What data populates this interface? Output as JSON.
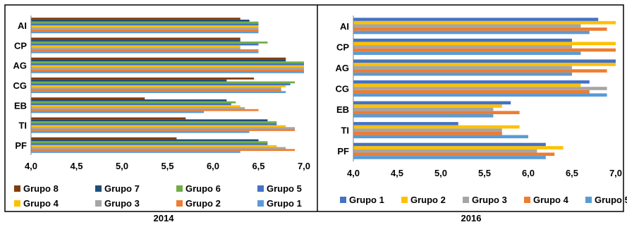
{
  "captions": [
    "2014",
    "2016"
  ],
  "chart_data": [
    {
      "type": "bar",
      "orientation": "horizontal",
      "title": "",
      "xlabel": "",
      "ylabel": "",
      "xlim": [
        4.0,
        7.0
      ],
      "xticks": [
        "4,0",
        "4,5",
        "5,0",
        "5,5",
        "6,0",
        "6,5",
        "7,0"
      ],
      "tick_values": [
        4.0,
        4.5,
        5.0,
        5.5,
        6.0,
        6.5,
        7.0
      ],
      "categories": [
        "AI",
        "CP",
        "AG",
        "CG",
        "EB",
        "TI",
        "PF"
      ],
      "grid": false,
      "legend_position": "bottom",
      "legend_columns": 4,
      "series": [
        {
          "name": "Grupo 8",
          "color": "#843C0C",
          "values": [
            6.3,
            6.3,
            6.8,
            6.45,
            5.25,
            5.7,
            5.6
          ]
        },
        {
          "name": "Grupo 7",
          "color": "#1F4E79",
          "values": [
            6.4,
            6.3,
            6.8,
            6.15,
            6.15,
            6.6,
            6.5
          ]
        },
        {
          "name": "Grupo 6",
          "color": "#70AD47",
          "values": [
            6.5,
            6.6,
            7.0,
            6.9,
            6.25,
            6.7,
            6.6
          ]
        },
        {
          "name": "Grupo 5",
          "color": "#4472C4",
          "values": [
            6.5,
            6.5,
            7.0,
            6.85,
            6.2,
            6.7,
            6.6
          ]
        },
        {
          "name": "Grupo 4",
          "color": "#FFC000",
          "values": [
            6.5,
            6.3,
            7.0,
            6.8,
            6.3,
            6.8,
            6.7
          ]
        },
        {
          "name": "Grupo 3",
          "color": "#A5A5A5",
          "values": [
            6.5,
            6.3,
            7.0,
            6.75,
            6.35,
            6.9,
            6.8
          ]
        },
        {
          "name": "Grupo 2",
          "color": "#ED7D31",
          "values": [
            6.5,
            6.5,
            7.0,
            6.75,
            6.5,
            6.9,
            6.9
          ]
        },
        {
          "name": "Grupo 1",
          "color": "#5B9BD5",
          "values": [
            6.5,
            6.5,
            7.0,
            6.8,
            5.9,
            6.4,
            6.3
          ]
        }
      ]
    },
    {
      "type": "bar",
      "orientation": "horizontal",
      "title": "",
      "xlabel": "",
      "ylabel": "",
      "xlim": [
        4.0,
        7.0
      ],
      "xticks": [
        "4,0",
        "4,5",
        "5,0",
        "5,5",
        "6,0",
        "6,5",
        "7,0"
      ],
      "tick_values": [
        4.0,
        4.5,
        5.0,
        5.5,
        6.0,
        6.5,
        7.0
      ],
      "categories": [
        "AI",
        "CP",
        "AG",
        "CG",
        "EB",
        "TI",
        "PF"
      ],
      "grid": false,
      "legend_position": "bottom",
      "legend_columns": 5,
      "series": [
        {
          "name": "Grupo 1",
          "color": "#4472C4",
          "values": [
            6.8,
            6.5,
            7.0,
            6.7,
            5.8,
            5.2,
            6.2
          ]
        },
        {
          "name": "Grupo 2",
          "color": "#FFC000",
          "values": [
            7.0,
            7.0,
            7.0,
            6.6,
            5.7,
            5.9,
            6.4
          ]
        },
        {
          "name": "Grupo 3",
          "color": "#A5A5A5",
          "values": [
            6.6,
            6.5,
            6.5,
            6.9,
            5.6,
            5.7,
            6.1
          ]
        },
        {
          "name": "Grupo 4",
          "color": "#ED7D31",
          "values": [
            6.9,
            7.0,
            6.9,
            6.7,
            5.9,
            5.7,
            6.3
          ]
        },
        {
          "name": "Grupo 5",
          "color": "#5B9BD5",
          "values": [
            6.7,
            6.6,
            6.5,
            6.9,
            5.6,
            6.0,
            6.2
          ]
        }
      ]
    }
  ]
}
